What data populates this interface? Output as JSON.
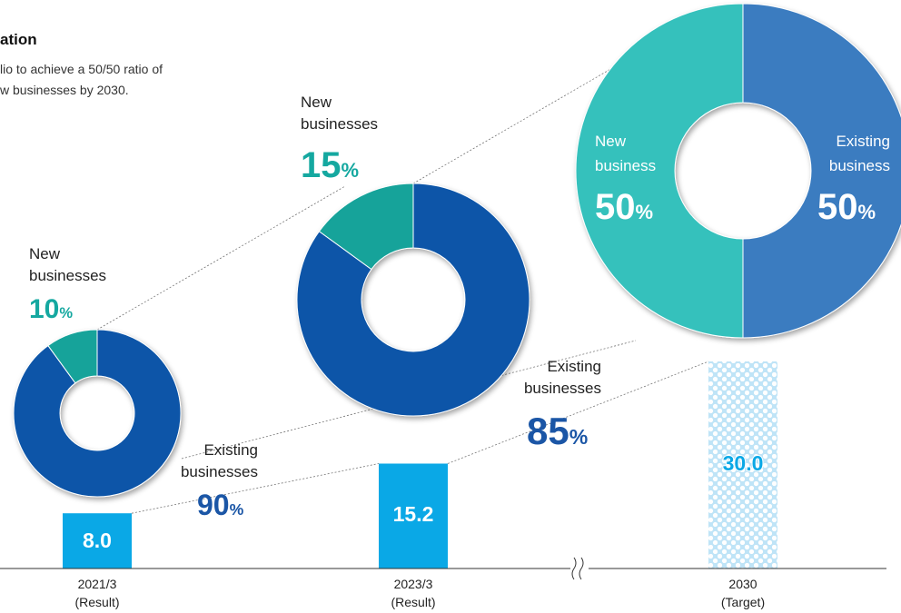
{
  "header": {
    "title": "ation",
    "subtitle_line1": "lio to achieve a 50/50 ratio of",
    "subtitle_line2": "w businesses by 2030."
  },
  "colors": {
    "new_2021": "#12a39a",
    "existing_2021": "#0a55a8",
    "new_2030": "#35c1bc",
    "existing_2030": "#3a7cc0",
    "bar": "#0aa8e6",
    "target_bar": "#bfe4f7"
  },
  "chart_data": [
    {
      "type": "bar",
      "categories": [
        "2021/3 (Result)",
        "2023/3 (Result)",
        "2030 (Target)"
      ],
      "values": [
        8.0,
        15.2,
        30.0
      ],
      "value_labels": [
        "8.0",
        "15.2",
        "30.0"
      ],
      "tick_labels": [
        {
          "line1": "2021/3",
          "line2": "(Result)"
        },
        {
          "line1": "2023/3",
          "line2": "(Result)"
        },
        {
          "line1": "2030",
          "line2": "(Target)"
        }
      ],
      "ylim": [
        0,
        30
      ],
      "grid": false,
      "axis_break": true
    },
    {
      "type": "pie",
      "period": "2021/3",
      "slices": [
        {
          "label_line1": "New",
          "label_line2": "businesses",
          "value": 10,
          "pct_text": "10"
        },
        {
          "label_line1": "Existing",
          "label_line2": "businesses",
          "value": 90,
          "pct_text": "90"
        }
      ]
    },
    {
      "type": "pie",
      "period": "2023/3",
      "slices": [
        {
          "label_line1": "New",
          "label_line2": "businesses",
          "value": 15,
          "pct_text": "15"
        },
        {
          "label_line1": "Existing",
          "label_line2": "businesses",
          "value": 85,
          "pct_text": "85"
        }
      ]
    },
    {
      "type": "pie",
      "period": "2030",
      "slices": [
        {
          "label_line1": "New",
          "label_line2": "business",
          "value": 50,
          "pct_text": "50"
        },
        {
          "label_line1": "Existing",
          "label_line2": "business",
          "value": 50,
          "pct_text": "50"
        }
      ]
    }
  ],
  "percent_sign": "%"
}
